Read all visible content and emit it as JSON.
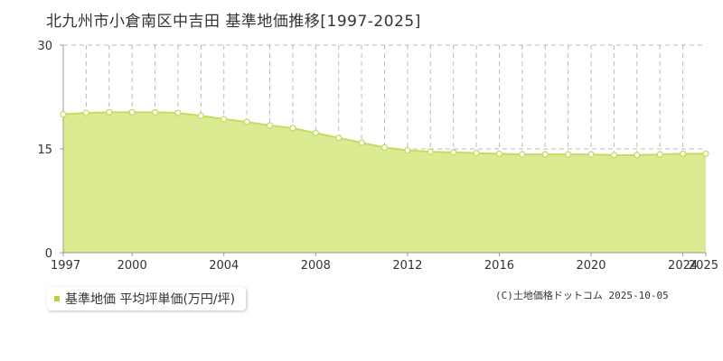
{
  "colors": {
    "area_fill": "#dbeb92",
    "line": "#c3dc63",
    "marker_fill": "#ffffff",
    "marker_stroke": "#c3dc63",
    "grid": "#bbbbbb",
    "axis": "#999999",
    "legend_swatch": "#b5d334"
  },
  "legend": {
    "label": "基準地価 平均坪単価(万円/坪)"
  },
  "credit": "(C)土地価格ドットコム 2025-10-05",
  "chart_data": {
    "type": "area",
    "title": "北九州市小倉南区中吉田 基準地価推移[1997-2025]",
    "xlabel": "",
    "ylabel": "",
    "xlim": [
      1997,
      2025
    ],
    "ylim": [
      0,
      30
    ],
    "y_ticks": [
      0,
      15,
      30
    ],
    "x_tick_labels": [
      "1997",
      "2000",
      "2004",
      "2008",
      "2012",
      "2016",
      "2020",
      "2024",
      "2025"
    ],
    "grid": true,
    "legend_position": "bottom-left",
    "series": [
      {
        "name": "基準地価 平均坪単価(万円/坪)",
        "x": [
          1997,
          1998,
          1999,
          2000,
          2001,
          2002,
          2003,
          2004,
          2005,
          2006,
          2007,
          2008,
          2009,
          2010,
          2011,
          2012,
          2013,
          2014,
          2015,
          2016,
          2017,
          2018,
          2019,
          2020,
          2021,
          2022,
          2023,
          2024,
          2025
        ],
        "values": [
          20.0,
          20.2,
          20.3,
          20.3,
          20.3,
          20.2,
          19.8,
          19.3,
          18.9,
          18.4,
          18.0,
          17.3,
          16.6,
          15.9,
          15.2,
          14.8,
          14.6,
          14.5,
          14.4,
          14.3,
          14.2,
          14.2,
          14.2,
          14.2,
          14.1,
          14.1,
          14.2,
          14.3,
          14.3
        ]
      }
    ]
  }
}
